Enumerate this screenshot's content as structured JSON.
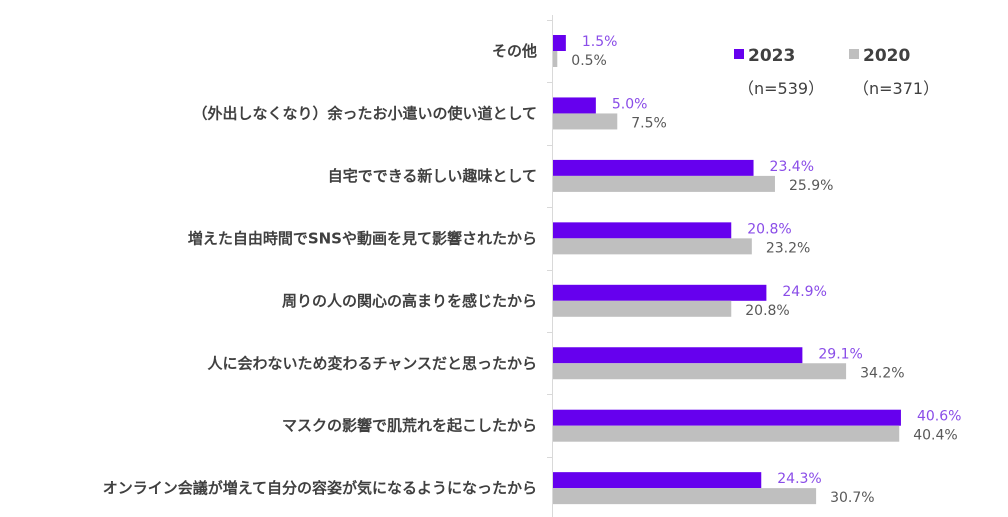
{
  "chart_data": {
    "type": "bar",
    "orientation": "horizontal",
    "categories": [
      "その他",
      "（外出しなくなり）余ったお小遣いの使い道として",
      "自宅でできる新しい趣味として",
      "増えた自由時間でSNSや動画を見て影響されたから",
      "周りの人の関心の高まりを感じたから",
      "人に会わないため変わるチャンスだと思ったから",
      "マスクの影響で肌荒れを起こしたから",
      "オンライン会議が増えて自分の容姿が気になるようになったから"
    ],
    "series": [
      {
        "name": "2023",
        "note": "（n=539）",
        "color": "#6600ee",
        "label_color": "#8a4de8",
        "values": [
          1.5,
          5.0,
          23.4,
          20.8,
          24.9,
          29.1,
          40.6,
          24.3
        ],
        "labels": [
          "1.5%",
          "5.0%",
          "23.4%",
          "20.8%",
          "24.9%",
          "29.1%",
          "40.6%",
          "24.3%"
        ]
      },
      {
        "name": "2020",
        "note": "（n=371）",
        "color": "#bfbfbf",
        "label_color": "#595959",
        "values": [
          0.5,
          7.5,
          25.9,
          23.2,
          20.8,
          34.2,
          40.4,
          30.7
        ],
        "labels": [
          "0.5%",
          "7.5%",
          "25.9%",
          "23.2%",
          "20.8%",
          "34.2%",
          "40.4%",
          "30.7%"
        ]
      }
    ],
    "unit": "%",
    "grid": false,
    "legend_position": "top-right"
  }
}
